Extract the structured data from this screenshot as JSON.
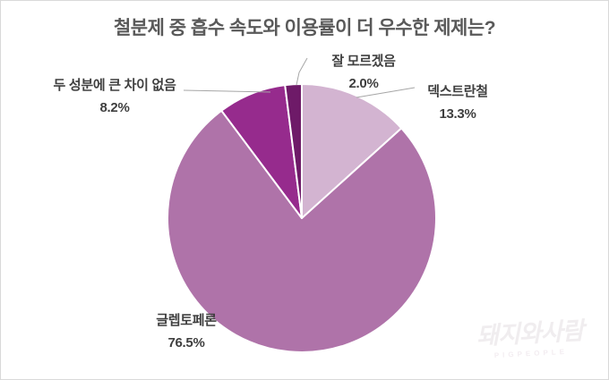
{
  "chart_data": {
    "type": "pie",
    "title": "철분제 중 흡수 속도와 이용률이 더 우수한 제제는?",
    "direction": "clockwise",
    "start_angle_deg": 0,
    "legend": "none",
    "label_style": "outside labels with category name and percent, gray leader lines",
    "slices": [
      {
        "slug": "dextran-iron",
        "label": "덱스트란철",
        "value": 13.3,
        "pct_label": "13.3%",
        "color": "#D3B4D1"
      },
      {
        "slug": "gleptoferron",
        "label": "글렙토페론",
        "value": 76.5,
        "pct_label": "76.5%",
        "color": "#AF73A9"
      },
      {
        "slug": "no-big-difference",
        "label": "두 성분에 큰 차이 없음",
        "value": 8.2,
        "pct_label": "8.2%",
        "color": "#962B8D"
      },
      {
        "slug": "dont-know",
        "label": "잘 모르겠음",
        "value": 2.0,
        "pct_label": "2.0%",
        "color": "#6E1A68"
      }
    ]
  },
  "colors": {
    "title_text": "#595959",
    "label_text": "#3f3f3f",
    "leader_line": "#a6a6a6",
    "slice_border": "#ffffff",
    "frame_border": "#d9d9d9",
    "background": "#ffffff"
  },
  "watermark": {
    "korean": "돼지와사람",
    "english": "PIGPEOPLE"
  }
}
